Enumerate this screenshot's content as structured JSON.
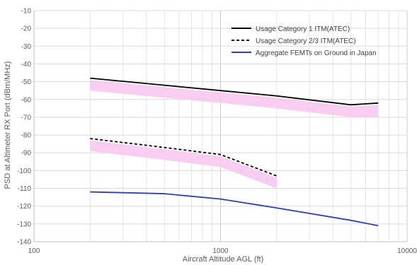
{
  "chart_data": {
    "type": "line",
    "xlabel": "Aircraft Altitude AGL (ft)",
    "ylabel": "PSD at Altimeter RX Port (dBm/MHz)",
    "x_scale": "log",
    "xlim": [
      100,
      10000
    ],
    "ylim": [
      -140,
      -10
    ],
    "x_ticks": [
      100,
      1000,
      10000
    ],
    "x_tick_labels": [
      "100",
      "1000",
      "10000"
    ],
    "y_ticks": [
      -10,
      -20,
      -30,
      -40,
      -50,
      -60,
      -70,
      -80,
      -90,
      -100,
      -110,
      -120,
      -130,
      -140
    ],
    "y_tick_labels": [
      "-10",
      "-20",
      "-30",
      "-40",
      "-50",
      "-60",
      "-70",
      "-80",
      "-90",
      "-100",
      "-110",
      "-120",
      "-130",
      "-140"
    ],
    "grid": true,
    "legend_position": "top-right",
    "series": [
      {
        "name": "Usage Category 1 ITM(ATEC)",
        "color": "#000000",
        "line_style": "solid",
        "x": [
          200,
          500,
          1000,
          2000,
          5000,
          7000
        ],
        "y": [
          -48,
          -52,
          -55,
          -58,
          -63,
          -62
        ]
      },
      {
        "name": "Usage Category 2/3 ITM(ATEC)",
        "color": "#000000",
        "line_style": "dashed",
        "x": [
          200,
          500,
          1000,
          2000
        ],
        "y": [
          -82,
          -87,
          -91,
          -103
        ]
      },
      {
        "name": "Aggregate FEMTs on Ground in Japan",
        "color": "#2f3cc0",
        "line_style": "solid",
        "x": [
          200,
          500,
          1000,
          2000,
          5000,
          7000
        ],
        "y": [
          -112,
          -113,
          -116,
          -121,
          -128,
          -131
        ]
      }
    ],
    "bands": [
      {
        "color": "#f7c8f0",
        "x": [
          200,
          500,
          1000,
          2000,
          5000,
          7000
        ],
        "upper": [
          -49,
          -53,
          -56,
          -59,
          -64,
          -63
        ],
        "lower": [
          -55,
          -59,
          -62,
          -65,
          -70,
          -70
        ]
      },
      {
        "color": "#f7c8f0",
        "x": [
          200,
          500,
          1000,
          2000
        ],
        "upper": [
          -83,
          -88,
          -92,
          -104
        ],
        "lower": [
          -89,
          -94,
          -98,
          -110
        ]
      }
    ]
  }
}
